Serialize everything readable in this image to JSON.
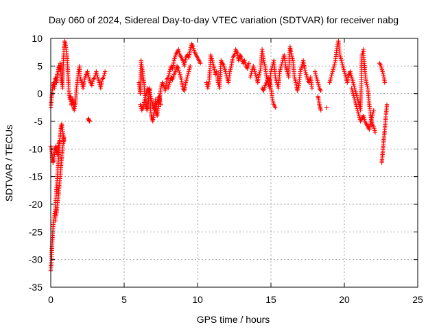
{
  "chart_data": {
    "type": "scatter",
    "title": "Day 060 of 2024, Sidereal Day-to-day VTEC variation (SDTVAR) for receiver nabg",
    "xlabel": "GPS time / hours",
    "ylabel": "SDTVAR / TECUs",
    "xlim": [
      0,
      25
    ],
    "ylim": [
      -35,
      10
    ],
    "xticks": [
      "0",
      "5",
      "10",
      "15",
      "20",
      "25"
    ],
    "yticks": [
      "-35",
      "-30",
      "-25",
      "-20",
      "-15",
      "-10",
      "-5",
      "0",
      "5",
      "10"
    ],
    "grid": true,
    "marker": "plus",
    "color": "#ff0000",
    "series": [
      {
        "name": "SDTVAR",
        "segments": [
          {
            "x": [
              0.0,
              0.05,
              0.1,
              0.15,
              0.2,
              0.25,
              0.3,
              0.35,
              0.4,
              0.45,
              0.5,
              0.55,
              0.6,
              0.65,
              0.7,
              0.75,
              0.8,
              0.85,
              0.9,
              0.95,
              1.0,
              1.05,
              1.1,
              1.15,
              1.2,
              1.25,
              1.3,
              1.35,
              1.4,
              1.45,
              1.5,
              1.55,
              1.6,
              1.65,
              1.7,
              1.75,
              1.8,
              1.85,
              1.9,
              1.95,
              2.0,
              2.1,
              2.2,
              2.3,
              2.4,
              2.5,
              2.6,
              2.7,
              2.8,
              2.9,
              3.0,
              3.1,
              3.2,
              3.3,
              3.4,
              3.5,
              3.6,
              3.7
            ],
            "y": [
              -2.5,
              -1.0,
              0.5,
              1.5,
              2.0,
              1.0,
              2.5,
              3.0,
              2.0,
              3.5,
              4.0,
              5.0,
              4.5,
              5.5,
              3.0,
              2.0,
              1.0,
              5.0,
              8.0,
              9.5,
              9.0,
              8.0,
              7.0,
              5.0,
              2.0,
              0.0,
              -1.0,
              -0.5,
              -2.0,
              -1.5,
              -1.0,
              -2.5,
              -3.0,
              -2.0,
              -1.5,
              1.0,
              2.0,
              3.0,
              4.0,
              5.0,
              3.0,
              2.0,
              1.0,
              2.5,
              3.5,
              4.0,
              3.0,
              2.0,
              1.5,
              2.5,
              3.0,
              4.0,
              3.0,
              2.0,
              1.0,
              2.5,
              3.0,
              4.0
            ]
          },
          {
            "x": [
              0.0,
              0.04,
              0.08,
              0.12,
              0.16,
              0.2,
              0.25,
              0.3,
              0.35,
              0.4,
              0.45,
              0.5,
              0.55,
              0.6,
              0.65,
              0.7,
              0.75,
              0.8,
              0.85,
              0.9
            ],
            "y": [
              -32.0,
              -30.5,
              -28.0,
              -26.0,
              -24.0,
              -23.0,
              -22.0,
              -21.0,
              -19.0,
              -17.0,
              -15.0,
              -13.0,
              -11.0,
              -9.0,
              -7.5,
              -6.0,
              -5.5,
              -6.5,
              -7.5,
              -8.5
            ]
          },
          {
            "x": [
              0.0,
              0.05,
              0.1,
              0.15,
              0.2,
              0.25,
              0.3,
              0.35,
              0.4,
              0.45,
              0.5,
              0.55,
              0.6
            ],
            "y": [
              -9.5,
              -10.5,
              -11.5,
              -12.5,
              -12.0,
              -11.0,
              -10.0,
              -9.5,
              -10.5,
              -11.0,
              -10.0,
              -9.0,
              -8.5
            ]
          },
          {
            "x": [
              0.3,
              0.35,
              0.4,
              0.45,
              0.5,
              0.55,
              0.6,
              0.65,
              0.7,
              0.75,
              0.8,
              0.85,
              0.9
            ],
            "y": [
              -23.0,
              -22.0,
              -21.5,
              -20.0,
              -19.0,
              -17.5,
              -16.0,
              -15.0,
              -13.0,
              -11.5,
              -10.0,
              -9.0,
              -8.0
            ]
          },
          {
            "x": [
              2.55,
              2.6,
              2.65
            ],
            "y": [
              -4.5,
              -4.8,
              -5.0
            ]
          },
          {
            "x": [
              6.0,
              6.05,
              6.1,
              6.15,
              6.2,
              6.25,
              6.3,
              6.35,
              6.4,
              6.45,
              6.5,
              6.55,
              6.6,
              6.65,
              6.7,
              6.75,
              6.8,
              6.85,
              6.9,
              6.95,
              7.0,
              7.05,
              7.1,
              7.15,
              7.2,
              7.25,
              7.3,
              7.35,
              7.4,
              7.45,
              7.5,
              7.6,
              7.7,
              7.8,
              7.9,
              8.0,
              8.1,
              8.2,
              8.3,
              8.4,
              8.5,
              8.6,
              8.7,
              8.8,
              8.9,
              9.0,
              9.1,
              9.2,
              9.3,
              9.4,
              9.5,
              9.6,
              9.7,
              9.8,
              9.9,
              10.0,
              10.1,
              10.2
            ],
            "y": [
              2.0,
              1.0,
              0.0,
              6.0,
              5.0,
              4.0,
              3.0,
              2.0,
              0.0,
              -1.0,
              -2.0,
              -3.0,
              -2.5,
              -1.5,
              0.5,
              1.0,
              -3.0,
              -4.0,
              -4.5,
              -5.0,
              -4.0,
              -3.0,
              -2.0,
              -1.0,
              -3.5,
              -4.0,
              -3.0,
              -2.0,
              -1.5,
              0.0,
              1.0,
              2.0,
              1.5,
              0.5,
              2.5,
              3.0,
              4.0,
              5.0,
              4.5,
              6.0,
              7.0,
              7.5,
              8.0,
              7.0,
              6.5,
              6.0,
              5.0,
              6.5,
              7.0,
              6.5,
              8.0,
              9.0,
              8.5,
              7.5,
              7.0,
              6.5,
              6.0,
              5.5
            ]
          },
          {
            "x": [
              6.1,
              6.2,
              6.3,
              6.4,
              6.5,
              6.6,
              6.7,
              6.8,
              6.9,
              7.0,
              7.1,
              7.2,
              7.3,
              7.4,
              7.5
            ],
            "y": [
              -2.0,
              -3.0,
              -2.5,
              -1.0,
              0.0,
              1.0,
              0.5,
              -0.5,
              -1.5,
              -2.5,
              -3.0,
              -2.0,
              -1.0,
              -0.5,
              -2.0
            ]
          },
          {
            "x": [
              8.0,
              8.1,
              8.2,
              8.3,
              8.4,
              8.5,
              8.6,
              8.7,
              8.8,
              8.9,
              9.0,
              9.1,
              9.2,
              9.3,
              9.4,
              9.5
            ],
            "y": [
              1.0,
              2.0,
              3.0,
              2.5,
              3.5,
              4.0,
              5.0,
              4.5,
              3.5,
              2.5,
              1.0,
              0.5,
              2.0,
              3.0,
              4.0,
              5.0
            ]
          },
          {
            "x": [
              10.6,
              10.7,
              10.8,
              10.9,
              11.0,
              11.1,
              11.2,
              11.3,
              11.4,
              11.5,
              11.6,
              11.7,
              11.8,
              11.9,
              12.0,
              12.1,
              12.2,
              12.3,
              12.4,
              12.5,
              12.6,
              12.7,
              12.8,
              12.9,
              13.0,
              13.1,
              13.2,
              13.3,
              13.4,
              13.5
            ],
            "y": [
              2.0,
              1.0,
              2.5,
              7.0,
              6.0,
              5.0,
              3.5,
              4.0,
              2.0,
              1.0,
              6.0,
              5.5,
              5.0,
              4.0,
              3.0,
              2.0,
              4.0,
              5.0,
              6.5,
              7.0,
              8.0,
              7.5,
              6.0,
              7.0,
              6.5,
              5.5,
              6.0,
              5.0,
              4.5,
              5.5
            ]
          },
          {
            "x": [
              13.6,
              13.7,
              13.8,
              13.9,
              14.0,
              14.1,
              14.2,
              14.3,
              14.4,
              14.5,
              14.6,
              14.7,
              14.8,
              14.9,
              15.0,
              15.1,
              15.2,
              15.3,
              15.4,
              15.5,
              15.6,
              15.7,
              15.8,
              15.9,
              16.0,
              16.1,
              16.2,
              16.3,
              16.4,
              16.5,
              16.6,
              16.7,
              16.8,
              16.9,
              17.0,
              17.1,
              17.2,
              17.3,
              17.4,
              17.5,
              17.6,
              17.7,
              17.8
            ],
            "y": [
              3.0,
              4.0,
              5.0,
              4.0,
              3.0,
              2.0,
              3.5,
              4.5,
              8.0,
              6.0,
              5.0,
              3.0,
              2.0,
              1.0,
              4.0,
              5.0,
              6.0,
              3.0,
              2.0,
              1.0,
              4.0,
              5.0,
              6.0,
              7.0,
              5.0,
              4.0,
              3.0,
              8.5,
              7.0,
              6.0,
              3.0,
              2.0,
              0.5,
              1.5,
              4.0,
              5.0,
              6.0,
              4.5,
              3.5,
              2.5,
              2.0,
              3.0,
              1.0
            ]
          },
          {
            "x": [
              14.4,
              14.5,
              14.6,
              14.7,
              14.8,
              14.9,
              15.0,
              15.1,
              15.2,
              15.3
            ],
            "y": [
              1.0,
              0.5,
              1.5,
              2.0,
              3.0,
              2.5,
              1.0,
              -1.0,
              -2.0,
              -2.5
            ]
          },
          {
            "x": [
              18.0,
              18.1,
              18.2,
              18.3,
              18.4
            ],
            "y": [
              4.0,
              3.0,
              2.0,
              1.0,
              0.5
            ]
          },
          {
            "x": [
              18.2,
              18.25,
              18.3,
              18.35,
              18.4
            ],
            "y": [
              -0.5,
              -1.0,
              -2.0,
              -2.5,
              -3.0
            ]
          },
          {
            "x": [
              18.8
            ],
            "y": [
              -2.5
            ]
          },
          {
            "x": [
              19.0,
              19.1,
              19.2,
              19.3,
              19.4,
              19.5,
              19.6,
              19.7,
              19.8,
              19.9,
              20.0,
              20.1,
              20.2,
              20.3,
              20.4,
              20.5,
              20.6,
              20.7,
              20.8,
              20.9,
              21.0,
              21.1,
              21.2,
              21.3,
              21.4,
              21.5,
              21.6,
              21.7,
              21.8,
              21.9,
              22.0,
              22.1
            ],
            "y": [
              2.0,
              3.0,
              4.0,
              5.0,
              6.0,
              8.5,
              9.5,
              7.0,
              6.0,
              5.0,
              4.0,
              3.0,
              2.0,
              3.5,
              4.0,
              3.0,
              2.0,
              1.0,
              0.0,
              -1.0,
              -2.0,
              -3.0,
              7.0,
              8.0,
              4.0,
              2.0,
              1.0,
              -2.0,
              -4.0,
              -5.5,
              -6.0,
              -7.0
            ]
          },
          {
            "x": [
              20.5,
              20.6,
              20.7,
              20.8,
              20.9,
              21.0,
              21.1,
              21.2,
              21.3,
              21.4,
              21.5,
              21.6,
              21.7,
              21.8,
              21.9,
              22.0
            ],
            "y": [
              1.0,
              0.0,
              -1.0,
              -2.0,
              -3.0,
              -4.0,
              -5.0,
              -4.5,
              -4.0,
              -5.0,
              -5.5,
              -6.0,
              -6.5,
              -5.0,
              -4.0,
              -3.0
            ]
          },
          {
            "x": [
              22.4,
              22.5,
              22.6,
              22.7,
              22.75
            ],
            "y": [
              5.5,
              5.0,
              4.0,
              3.0,
              2.0
            ]
          },
          {
            "x": [
              22.55,
              22.6,
              22.65,
              22.7,
              22.75,
              22.8,
              22.85,
              22.9
            ],
            "y": [
              -12.5,
              -11.0,
              -9.5,
              -8.0,
              -6.5,
              -5.0,
              -3.5,
              -2.0
            ]
          }
        ]
      }
    ]
  }
}
